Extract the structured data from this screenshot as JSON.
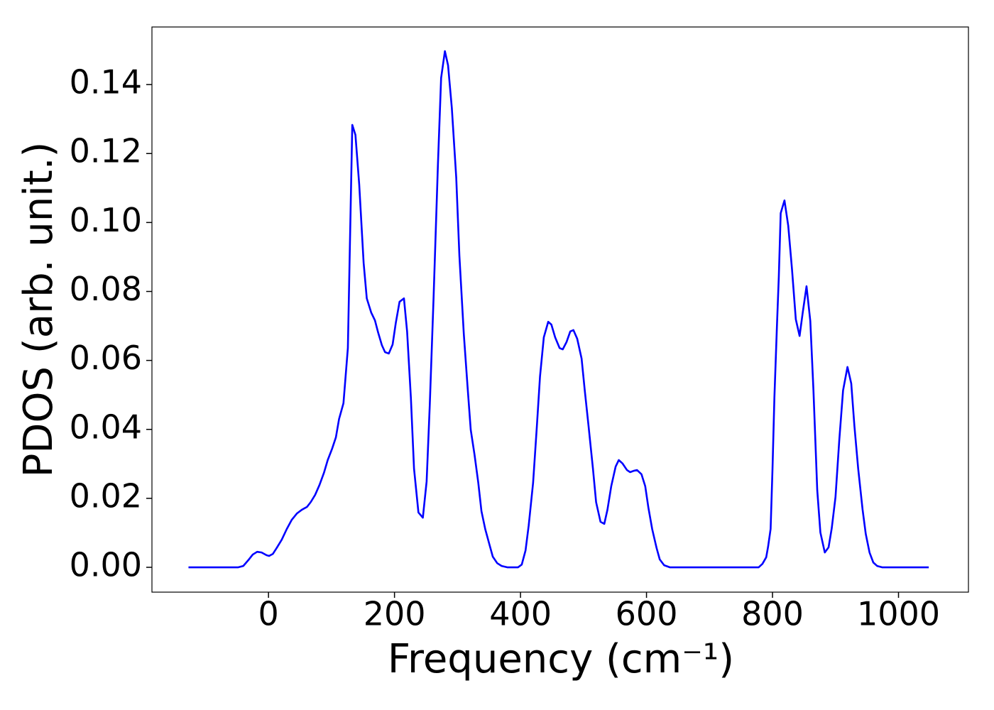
{
  "chart_data": {
    "type": "line",
    "xlabel": "Frequency (cm⁻¹)",
    "ylabel": "PDOS (arb. unit.)",
    "xlim": [
      -185,
      1111
    ],
    "ylim": [
      -0.0072,
      0.1567
    ],
    "xticks": [
      0,
      200,
      400,
      600,
      800,
      1000
    ],
    "yticks": [
      {
        "value": 0,
        "label": "0.00"
      },
      {
        "value": 0.02,
        "label": "0.02"
      },
      {
        "value": 0.04,
        "label": "0.04"
      },
      {
        "value": 0.06,
        "label": "0.06"
      },
      {
        "value": 0.08,
        "label": "0.08"
      },
      {
        "value": 0.1,
        "label": "0.10"
      },
      {
        "value": 0.12,
        "label": "0.12"
      },
      {
        "value": 0.14,
        "label": "0.14"
      }
    ],
    "grid": false,
    "x": [
      -127,
      -48,
      -40,
      -31,
      -25,
      -18,
      -11,
      -3,
      1,
      7,
      13,
      21,
      29,
      37,
      45,
      53,
      61,
      67,
      74,
      81,
      88,
      94,
      101,
      107,
      112,
      119,
      126,
      133,
      138,
      144,
      151,
      156,
      163,
      169,
      174,
      180,
      185,
      191,
      197,
      202,
      208,
      215,
      220,
      226,
      231,
      238,
      245,
      251,
      256,
      262,
      269,
      274,
      280,
      285,
      291,
      298,
      303,
      310,
      316,
      321,
      327,
      333,
      338,
      344,
      351,
      356,
      363,
      370,
      379,
      396,
      402,
      408,
      413,
      420,
      426,
      431,
      437,
      444,
      449,
      455,
      462,
      467,
      473,
      479,
      484,
      490,
      497,
      502,
      508,
      515,
      520,
      527,
      533,
      538,
      544,
      551,
      556,
      562,
      569,
      574,
      580,
      585,
      592,
      598,
      603,
      609,
      616,
      621,
      628,
      637,
      778,
      784,
      790,
      793,
      797,
      800,
      803,
      807,
      810,
      813,
      819,
      825,
      831,
      837,
      843,
      848,
      854,
      860,
      865,
      871,
      876,
      883,
      889,
      894,
      900,
      906,
      912,
      919,
      925,
      930,
      936,
      943,
      948,
      954,
      960,
      966,
      974,
      1048
    ],
    "series": [
      {
        "name": "PDOS",
        "color": "#0000ff",
        "values": [
          0,
          0,
          0.0004,
          0.0023,
          0.0037,
          0.0045,
          0.0043,
          0.0035,
          0.0033,
          0.0039,
          0.0056,
          0.008,
          0.0111,
          0.0138,
          0.0156,
          0.0167,
          0.0175,
          0.0189,
          0.021,
          0.0239,
          0.0274,
          0.0311,
          0.0344,
          0.0377,
          0.043,
          0.0476,
          0.0636,
          0.1283,
          0.1254,
          0.111,
          0.0883,
          0.078,
          0.0739,
          0.0716,
          0.0681,
          0.0644,
          0.0624,
          0.062,
          0.0646,
          0.0708,
          0.077,
          0.078,
          0.0684,
          0.0492,
          0.0286,
          0.0159,
          0.0144,
          0.0249,
          0.0471,
          0.078,
          0.1171,
          0.1419,
          0.1497,
          0.1456,
          0.1332,
          0.113,
          0.0904,
          0.0677,
          0.0523,
          0.0399,
          0.0327,
          0.0245,
          0.0163,
          0.0111,
          0.0064,
          0.0031,
          0.0012,
          0.0004,
          0,
          0,
          0.0008,
          0.0049,
          0.0121,
          0.0245,
          0.041,
          0.0554,
          0.0667,
          0.0712,
          0.0704,
          0.0667,
          0.0636,
          0.0632,
          0.0653,
          0.0684,
          0.0688,
          0.0663,
          0.0605,
          0.0513,
          0.041,
          0.0286,
          0.0189,
          0.0132,
          0.0126,
          0.0167,
          0.0235,
          0.0292,
          0.0311,
          0.0301,
          0.0282,
          0.0276,
          0.028,
          0.0282,
          0.027,
          0.0235,
          0.0173,
          0.0111,
          0.0056,
          0.0023,
          0.0006,
          0,
          0,
          0.001,
          0.0029,
          0.006,
          0.0111,
          0.0286,
          0.0492,
          0.0698,
          0.0842,
          0.1027,
          0.1064,
          0.099,
          0.0863,
          0.0719,
          0.0671,
          0.0739,
          0.0815,
          0.0714,
          0.0513,
          0.0224,
          0.0101,
          0.0043,
          0.0058,
          0.0113,
          0.0204,
          0.0369,
          0.0513,
          0.0581,
          0.0533,
          0.041,
          0.0286,
          0.0167,
          0.0097,
          0.0043,
          0.0014,
          0.0004,
          0,
          0
        ]
      }
    ]
  }
}
